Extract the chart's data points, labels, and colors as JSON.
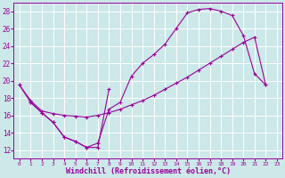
{
  "xlabel": "Windchill (Refroidissement éolien,°C)",
  "background_color": "#cce8e8",
  "grid_color": "#ffffff",
  "line_color": "#990099",
  "xlim": [
    -0.5,
    23.5
  ],
  "ylim": [
    11,
    29
  ],
  "yticks": [
    12,
    14,
    16,
    18,
    20,
    22,
    24,
    26,
    28
  ],
  "xticks": [
    0,
    1,
    2,
    3,
    4,
    5,
    6,
    7,
    8,
    9,
    10,
    11,
    12,
    13,
    14,
    15,
    16,
    17,
    18,
    19,
    20,
    21,
    22,
    23
  ],
  "series1_x": [
    0,
    1,
    2,
    3,
    4,
    5,
    6,
    7,
    8
  ],
  "series1_y": [
    19.5,
    17.5,
    16.3,
    15.2,
    13.5,
    13.0,
    12.3,
    12.3,
    19.0
  ],
  "series2_x": [
    1,
    2,
    3,
    4,
    5,
    6,
    7,
    8,
    9,
    10,
    11,
    12,
    13,
    14,
    15,
    16,
    17,
    18,
    19,
    20,
    21,
    22
  ],
  "series2_y": [
    17.5,
    16.3,
    15.2,
    13.5,
    13.0,
    12.3,
    12.8,
    16.7,
    17.5,
    20.5,
    22.0,
    23.0,
    24.2,
    26.0,
    27.8,
    28.2,
    28.3,
    28.0,
    27.5,
    25.2,
    20.8,
    19.5
  ],
  "series3_x": [
    0,
    1,
    2,
    3,
    4,
    5,
    6,
    7,
    8,
    9,
    10,
    11,
    12,
    13,
    14,
    15,
    16,
    17,
    18,
    19,
    20,
    21,
    22
  ],
  "series3_y": [
    19.5,
    17.7,
    16.5,
    16.2,
    16.0,
    15.9,
    15.8,
    16.0,
    16.3,
    16.7,
    17.2,
    17.7,
    18.3,
    19.0,
    19.7,
    20.4,
    21.2,
    22.0,
    22.8,
    23.6,
    24.4,
    25.0,
    19.5
  ]
}
